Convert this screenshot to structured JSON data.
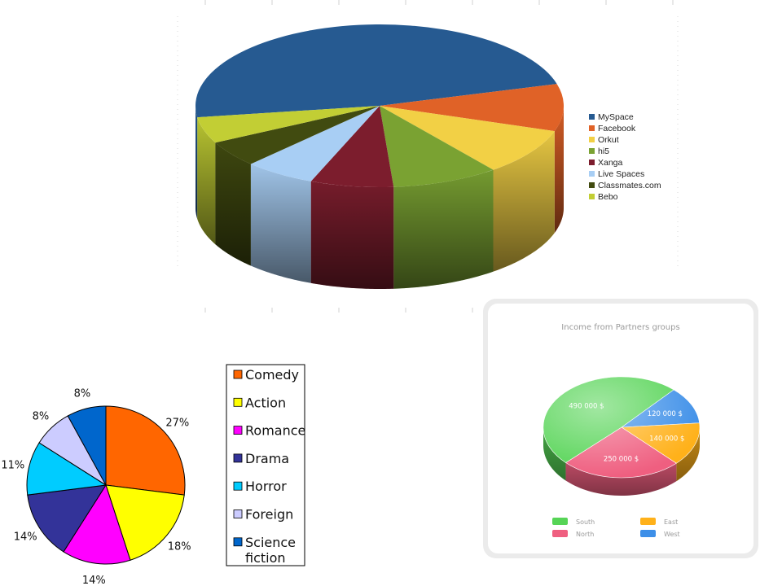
{
  "chart_data": [
    {
      "type": "pie",
      "style": "3d",
      "title": "",
      "categories": [
        "MySpace",
        "Facebook",
        "Orkut",
        "hi5",
        "Xanga",
        "Live Spaces",
        "Classmates.com",
        "Bebo"
      ],
      "values": [
        46,
        9,
        9,
        9,
        7,
        6,
        5,
        5
      ],
      "colors": [
        "#265a91",
        "#e06227",
        "#f2d045",
        "#7aa232",
        "#7c1d2d",
        "#a8cef4",
        "#414b10",
        "#c2ce34"
      ],
      "legend": "right"
    },
    {
      "type": "pie",
      "title": "",
      "categories": [
        "Comedy",
        "Action",
        "Romance",
        "Drama",
        "Horror",
        "Foreign",
        "Science fiction"
      ],
      "values": [
        27,
        18,
        14,
        14,
        11,
        8,
        8
      ],
      "value_labels": [
        "27%",
        "18%",
        "14%",
        "14%",
        "11%",
        "8%",
        "8%"
      ],
      "colors": [
        "#ff6600",
        "#ffff00",
        "#ff00ff",
        "#333399",
        "#00ccff",
        "#ccccff",
        "#0066cc"
      ],
      "legend": "right"
    },
    {
      "type": "pie",
      "style": "3d",
      "title": "Income from Partners groups",
      "categories": [
        "South",
        "East",
        "North",
        "West"
      ],
      "values": [
        490000,
        140000,
        250000,
        120000
      ],
      "value_labels": [
        "490 000 $",
        "140 000 $",
        "250 000 $",
        "120 000 $"
      ],
      "colors": [
        "#56d456",
        "#ffb11a",
        "#ef5f80",
        "#3d8fe8"
      ],
      "legend": "bottom"
    }
  ]
}
